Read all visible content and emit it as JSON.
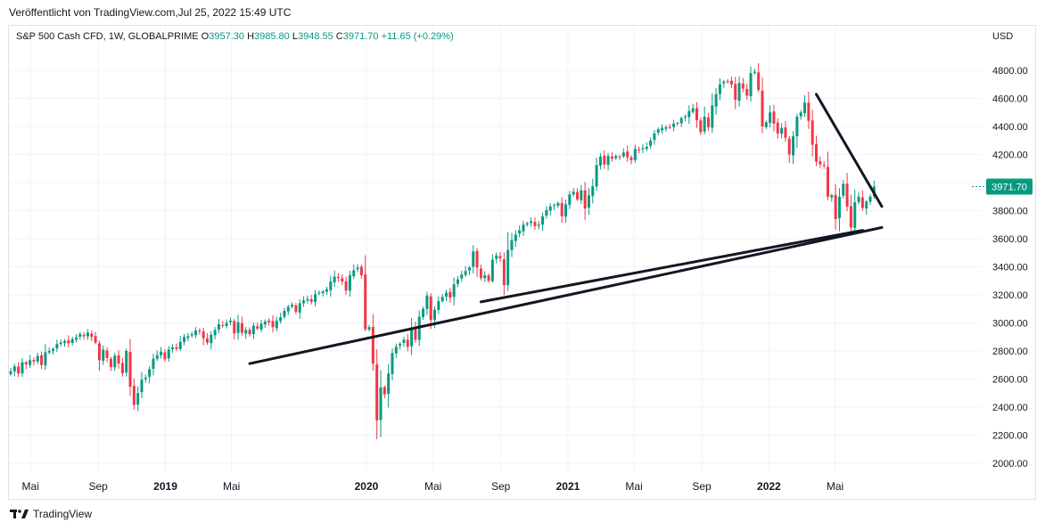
{
  "caption": "Veröffentlicht von TradingView.com,Jul 25, 2022 15:49 UTC",
  "legend": {
    "symbol": "S&P 500 Cash CFD, 1W, GLOBALPRIME",
    "o_label": "O",
    "o": "3957.30",
    "h_label": "H",
    "h": "3985.80",
    "l_label": "L",
    "l": "3948.55",
    "c_label": "C",
    "c": "3971.70",
    "change": "+11.65 (+0.29%)"
  },
  "currency": "USD",
  "footer": {
    "brand": "TradingView",
    "logo": "tradingview-logo-icon"
  },
  "colors": {
    "up": "#089981",
    "down": "#f23645",
    "grid": "#f0f3fa",
    "trend": "#131722",
    "last_price_bg": "#089981"
  },
  "chart_data": {
    "type": "candlestick",
    "y_ticks": [
      2000,
      2200,
      2400,
      2600,
      2800,
      3000,
      3200,
      3400,
      3600,
      3800,
      4000,
      4200,
      4400,
      4600,
      4800
    ],
    "y_tick_labels": [
      "2000.00",
      "2200.00",
      "2400.00",
      "2600.00",
      "2800.00",
      "3000.00",
      "3200.00",
      "3400.00",
      "3600.00",
      "3800.00",
      "4000.00",
      "4200.00",
      "4400.00",
      "4600.00",
      "4800.00"
    ],
    "x_ticks": [
      {
        "label": "Mai",
        "date": "2018-05-01"
      },
      {
        "label": "Sep",
        "date": "2018-09-01"
      },
      {
        "label": "2019",
        "date": "2019-01-01",
        "bold": true
      },
      {
        "label": "Mai",
        "date": "2019-05-01"
      },
      {
        "label": "2020",
        "date": "2020-01-01",
        "bold": true
      },
      {
        "label": "Mai",
        "date": "2020-05-01"
      },
      {
        "label": "Sep",
        "date": "2020-09-01"
      },
      {
        "label": "2021",
        "date": "2021-01-01",
        "bold": true
      },
      {
        "label": "Mai",
        "date": "2021-05-01"
      },
      {
        "label": "Sep",
        "date": "2021-09-01"
      },
      {
        "label": "2022",
        "date": "2022-01-01",
        "bold": true
      },
      {
        "label": "Mai",
        "date": "2022-05-01"
      }
    ],
    "last_price": 3971.7,
    "last_price_label": "3971.70",
    "closes": [
      2655,
      2690,
      2640,
      2720,
      2705,
      2735,
      2725,
      2765,
      2700,
      2790,
      2800,
      2815,
      2850,
      2860,
      2870,
      2855,
      2885,
      2895,
      2920,
      2905,
      2930,
      2900,
      2860,
      2735,
      2810,
      2750,
      2685,
      2765,
      2710,
      2640,
      2800,
      2545,
      2415,
      2500,
      2595,
      2610,
      2670,
      2745,
      2770,
      2795,
      2740,
      2810,
      2825,
      2815,
      2865,
      2900,
      2905,
      2920,
      2945,
      2940,
      2890,
      2860,
      2915,
      2950,
      2990,
      2980,
      3000,
      3015,
      2925,
      3005,
      2930,
      2950,
      2920,
      2980,
      2960,
      2995,
      3010,
      3005,
      2970,
      3015,
      3040,
      3085,
      3115,
      3130,
      3080,
      3140,
      3160,
      3170,
      3150,
      3205,
      3215,
      3225,
      3240,
      3295,
      3330,
      3320,
      3295,
      3230,
      3340,
      3375,
      3395,
      3340,
      2955,
      2970,
      2710,
      2305,
      2540,
      2490,
      2640,
      2785,
      2830,
      2850,
      2880,
      2830,
      2960,
      2880,
      3045,
      3100,
      3195,
      3020,
      3095,
      3155,
      3185,
      3215,
      3180,
      3275,
      3310,
      3345,
      3370,
      3395,
      3510,
      3395,
      3320,
      3340,
      3300,
      3450,
      3480,
      3460,
      3270,
      3520,
      3590,
      3630,
      3660,
      3700,
      3710,
      3725,
      3690,
      3700,
      3760,
      3805,
      3830,
      3840,
      3855,
      3760,
      3845,
      3915,
      3935,
      3880,
      3945,
      3815,
      3910,
      3975,
      4125,
      4185,
      4130,
      4190,
      4170,
      4190,
      4180,
      4215,
      4180,
      4160,
      4240,
      4230,
      4245,
      4255,
      4300,
      4350,
      4380,
      4390,
      4395,
      4395,
      4420,
      4420,
      4460,
      4470,
      4510,
      4530,
      4445,
      4360,
      4470,
      4395,
      4550,
      4630,
      4700,
      4720,
      4720,
      4700,
      4590,
      4710,
      4670,
      4620,
      4780,
      4790,
      4660,
      4400,
      4430,
      4500,
      4420,
      4350,
      4390,
      4320,
      4200,
      4330,
      4470,
      4500,
      4570,
      4440,
      4270,
      4150,
      4130,
      4120,
      3900,
      3910,
      3740,
      3900,
      3990,
      3830,
      3680,
      3860,
      3900,
      3820,
      3865,
      3900,
      3972
    ],
    "trendlines": [
      {
        "from": {
          "date": "2019-06-03",
          "price": 2710
        },
        "to": {
          "date": "2022-07-25",
          "price": 3680
        }
      },
      {
        "from": {
          "date": "2020-07-27",
          "price": 3150
        },
        "to": {
          "date": "2022-06-20",
          "price": 3660
        }
      },
      {
        "from": {
          "date": "2022-03-28",
          "price": 4630
        },
        "to": {
          "date": "2022-07-25",
          "price": 3830
        }
      }
    ]
  }
}
